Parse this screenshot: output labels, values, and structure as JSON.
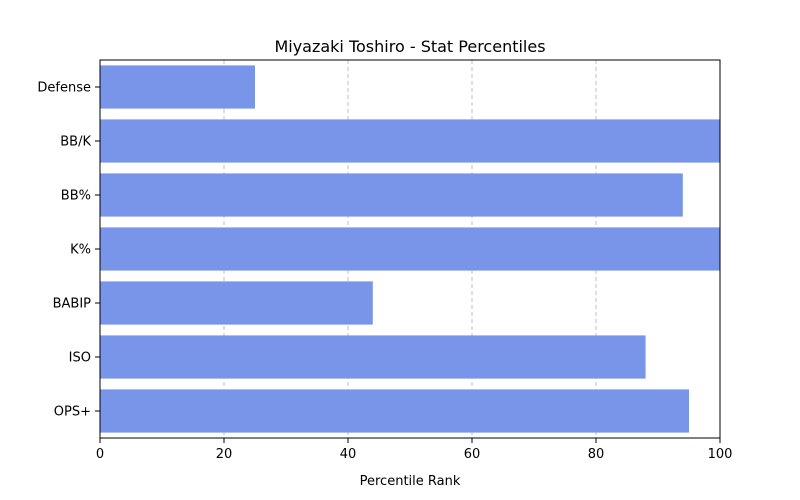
{
  "chart_data": {
    "type": "bar",
    "orientation": "horizontal",
    "title": "Miyazaki Toshiro - Stat Percentiles",
    "xlabel": "Percentile Rank",
    "ylabel": "",
    "xlim": [
      0,
      100
    ],
    "xticks": [
      "0",
      "20",
      "40",
      "60",
      "80",
      "100"
    ],
    "categories": [
      "OPS+",
      "ISO",
      "BABIP",
      "K%",
      "BB%",
      "BB/K",
      "Defense"
    ],
    "values": [
      95,
      88,
      44,
      100,
      94,
      100,
      25
    ],
    "grid": "vertical dashed",
    "bar_color": "#7895EA",
    "grid_color": "#b0b0b0"
  }
}
